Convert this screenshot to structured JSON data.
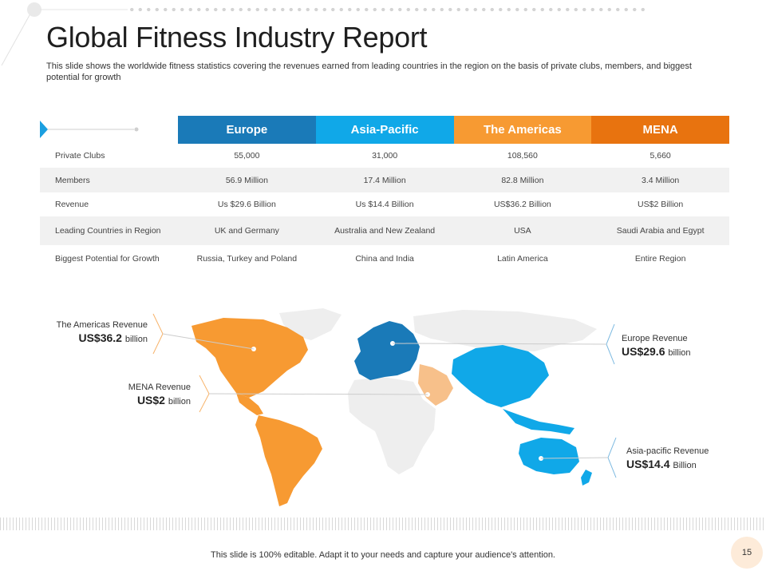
{
  "header": {
    "title": "Global Fitness Industry Report",
    "subtitle": "This slide shows the worldwide fitness statistics covering the revenues earned from leading countries in the region on the basis of  private clubs, members, and biggest potential for growth"
  },
  "table": {
    "columns": [
      "Europe",
      "Asia-Pacific",
      "The Americas",
      "MENA"
    ],
    "column_colors": [
      "#1a7ab8",
      "#10a8e8",
      "#f79a32",
      "#e8730f"
    ],
    "rows": [
      {
        "label": "Private Clubs",
        "values": [
          "55,000",
          "31,000",
          "108,560",
          "5,660"
        ]
      },
      {
        "label": "Members",
        "values": [
          "56.9 Million",
          "17.4 Million",
          "82.8 Million",
          "3.4 Million"
        ]
      },
      {
        "label": "Revenue",
        "values": [
          "Us $29.6 Billion",
          "Us $14.4 Billion",
          "US$36.2 Billion",
          "US$2 Billion"
        ]
      },
      {
        "label": "Leading Countries in Region",
        "values": [
          "UK and Germany",
          "Australia and New Zealand",
          "USA",
          "Saudi Arabia and Egypt"
        ]
      },
      {
        "label": "Biggest Potential for Growth",
        "values": [
          "Russia, Turkey and Poland",
          "China and India",
          "Latin America",
          "Entire Region"
        ]
      }
    ]
  },
  "callouts": {
    "americas": {
      "label": "The Americas Revenue",
      "value": "US$36.2",
      "unit": "billion"
    },
    "mena": {
      "label": "MENA Revenue",
      "value": "US$2",
      "unit": "billion"
    },
    "europe": {
      "label": "Europe Revenue",
      "value": "US$29.6",
      "unit": "billion"
    },
    "apac": {
      "label": "Asia-pacific Revenue",
      "value": "US$14.4",
      "unit": "Billion"
    }
  },
  "map_colors": {
    "americas": "#f79a32",
    "europe": "#1a7ab8",
    "apac": "#10a8e8",
    "mena": "#f7c08a",
    "other": "#eeeeee"
  },
  "footer": {
    "note": "This slide is 100% editable. Adapt it to your needs and capture your audience's attention.",
    "page_number": "15"
  }
}
